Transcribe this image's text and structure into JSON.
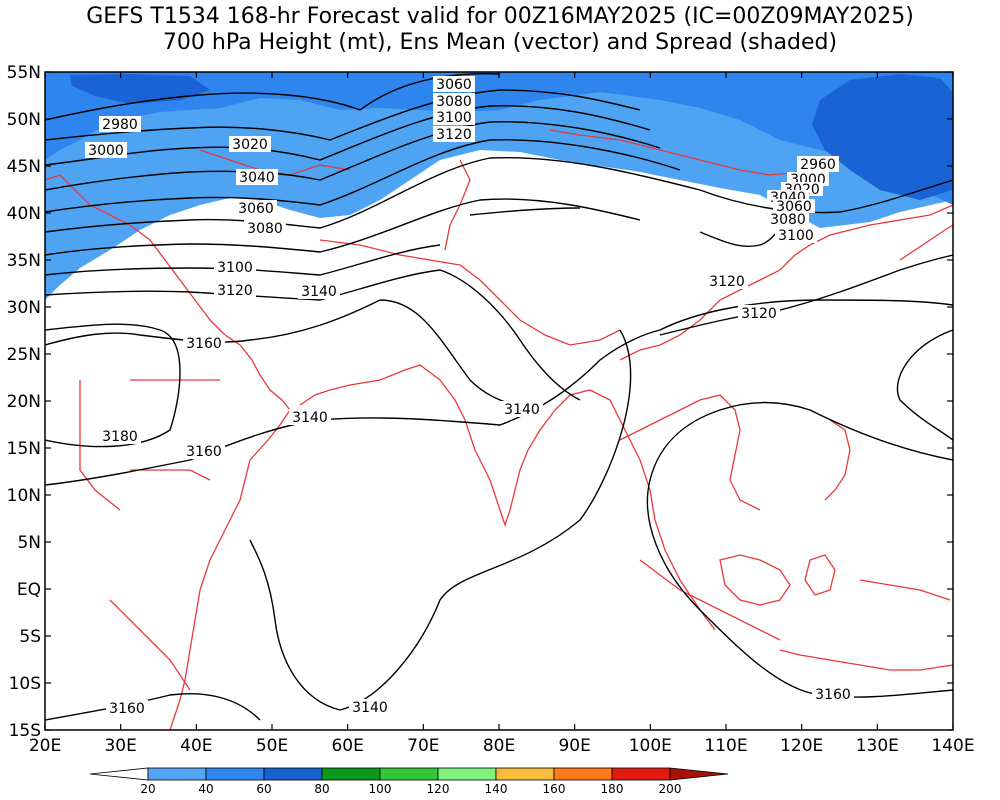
{
  "title": {
    "line1": "GEFS T1534 168-hr Forecast valid for 00Z16MAY2025 (IC=00Z09MAY2025)",
    "line2": "700 hPa Height (mt), Ens Mean (vector) and Spread (shaded)"
  },
  "axes": {
    "lon_ticks": [
      "20E",
      "30E",
      "40E",
      "50E",
      "60E",
      "70E",
      "80E",
      "90E",
      "100E",
      "110E",
      "120E",
      "130E",
      "140E"
    ],
    "lat_ticks": [
      "55N",
      "50N",
      "45N",
      "40N",
      "35N",
      "30N",
      "25N",
      "20N",
      "15N",
      "10N",
      "5N",
      "EQ",
      "5S",
      "10S",
      "15S"
    ]
  },
  "colorbar": {
    "labels": [
      "20",
      "40",
      "60",
      "80",
      "100",
      "120",
      "140",
      "160",
      "180",
      "200"
    ],
    "colors": [
      "#ffffff",
      "#55a5f5",
      "#2f87ee",
      "#1862cf",
      "#0b9a1e",
      "#35c63c",
      "#80f37c",
      "#f8bc3c",
      "#ff7b1a",
      "#e31a0e",
      "#a8110a"
    ]
  },
  "map": {
    "shade_colors": {
      "light": "#4ea3f3",
      "medium": "#2e85ee",
      "dark": "#1a63d4"
    },
    "coast_color": "#e8393a",
    "contour_labels": [
      {
        "text": "2980"
      },
      {
        "text": "3000"
      },
      {
        "text": "3020"
      },
      {
        "text": "3040"
      },
      {
        "text": "3060"
      },
      {
        "text": "3080"
      },
      {
        "text": "3100"
      },
      {
        "text": "3120"
      },
      {
        "text": "3140"
      },
      {
        "text": "3160"
      },
      {
        "text": "3180"
      },
      {
        "text": "3160"
      },
      {
        "text": "3140"
      },
      {
        "text": "3140"
      },
      {
        "text": "3140"
      },
      {
        "text": "3160"
      },
      {
        "text": "3060"
      },
      {
        "text": "3080"
      },
      {
        "text": "3100"
      },
      {
        "text": "3120"
      },
      {
        "text": "2960"
      },
      {
        "text": "3000"
      },
      {
        "text": "3020"
      },
      {
        "text": "3040"
      },
      {
        "text": "3060"
      },
      {
        "text": "3080"
      },
      {
        "text": "3100"
      },
      {
        "text": "3120"
      },
      {
        "text": "3120"
      },
      {
        "text": "3160"
      }
    ]
  }
}
